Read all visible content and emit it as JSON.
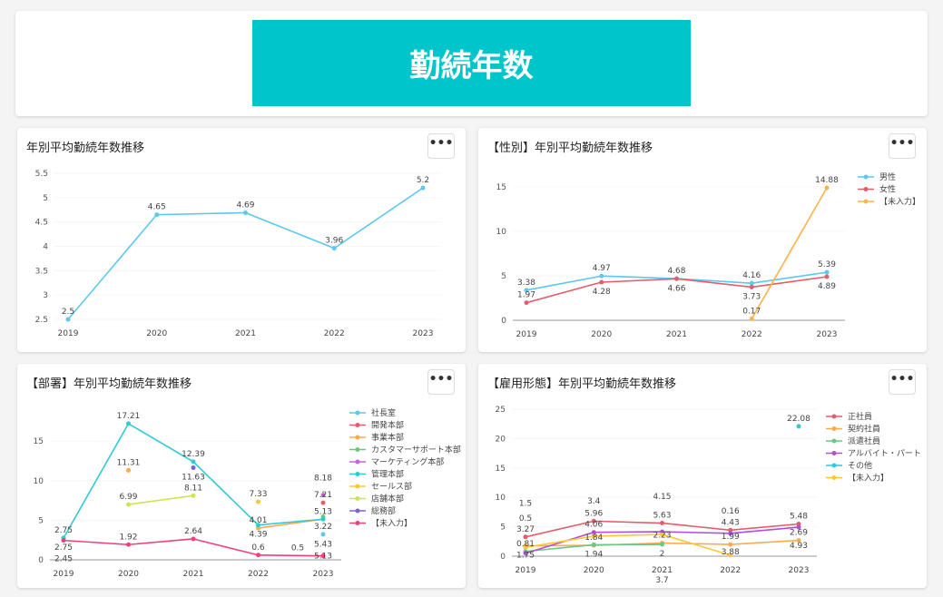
{
  "header": {
    "title": "勤続年数"
  },
  "menu_label": "•••",
  "chart_data": [
    {
      "type": "line",
      "title": "年別平均勤続年数推移",
      "categories": [
        "2019",
        "2020",
        "2021",
        "2022",
        "2023"
      ],
      "ylim": [
        2.5,
        5.5
      ],
      "yticks": [
        2.5,
        3,
        3.5,
        4,
        4.5,
        5,
        5.5
      ],
      "legend": "none",
      "series": [
        {
          "color": "#5ac8f0",
          "values": [
            2.5,
            4.65,
            4.69,
            3.96,
            5.2
          ]
        }
      ]
    },
    {
      "type": "line",
      "title": "【性別】年別平均勤続年数推移",
      "categories": [
        "2019",
        "2020",
        "2021",
        "2022",
        "2023"
      ],
      "ylim": [
        0,
        16
      ],
      "yticks": [
        0,
        5,
        10,
        15
      ],
      "legend": "right",
      "series": [
        {
          "name": "男性",
          "color": "#5ac8f0",
          "values": [
            3.38,
            4.97,
            4.68,
            4.16,
            5.39
          ]
        },
        {
          "name": "女性",
          "color": "#e35d6a",
          "values": [
            1.97,
            4.28,
            4.66,
            3.73,
            4.89
          ]
        },
        {
          "name": "【未入力】",
          "color": "#ffb347",
          "values": [
            null,
            null,
            null,
            0.17,
            14.88
          ]
        }
      ]
    },
    {
      "type": "line",
      "title": "【部署】年別平均勤続年数推移",
      "categories": [
        "2019",
        "2020",
        "2021",
        "2022",
        "2023"
      ],
      "ylim": [
        0,
        18
      ],
      "yticks": [
        0,
        5,
        10,
        15
      ],
      "legend": "right",
      "series": [
        {
          "name": "社長室",
          "color": "#5ac8f0",
          "values": [
            null,
            null,
            null,
            null,
            3.22
          ]
        },
        {
          "name": "開発本部",
          "color": "#e35d6a",
          "values": [
            null,
            null,
            null,
            null,
            7.21
          ]
        },
        {
          "name": "事業本部",
          "color": "#ffa94d",
          "values": [
            null,
            11.31,
            null,
            4.01,
            5.13
          ]
        },
        {
          "name": "カスタマーサポート本部",
          "color": "#6cc785",
          "values": [
            2.75,
            null,
            null,
            null,
            5.43
          ]
        },
        {
          "name": "マーケティング本部",
          "color": "#c266d9",
          "values": [
            null,
            null,
            null,
            null,
            8.18
          ]
        },
        {
          "name": "管理本部",
          "color": "#2ecad6",
          "values": [
            2.75,
            17.21,
            12.39,
            4.39,
            5.13
          ]
        },
        {
          "name": "セールス部",
          "color": "#ffc733",
          "values": [
            null,
            null,
            null,
            7.33,
            null
          ]
        },
        {
          "name": "店舗本部",
          "color": "#cce64d",
          "values": [
            null,
            6.99,
            8.11,
            null,
            null
          ]
        },
        {
          "name": "総務部",
          "color": "#7b61d9",
          "values": [
            null,
            null,
            11.63,
            null,
            null
          ]
        },
        {
          "name": "【未入力】",
          "color": "#f0407a",
          "values": [
            2.45,
            1.92,
            2.64,
            0.6,
            0.5
          ]
        }
      ]
    },
    {
      "type": "line",
      "title": "【雇用形態】年別平均勤続年数推移",
      "categories": [
        "2019",
        "2020",
        "2021",
        "2022",
        "2023"
      ],
      "ylim": [
        0,
        25
      ],
      "yticks": [
        0,
        5,
        10,
        15,
        20,
        25
      ],
      "legend": "right",
      "series": [
        {
          "name": "正社員",
          "color": "#e35d6a",
          "values": [
            3.27,
            5.96,
            5.63,
            4.43,
            5.48
          ]
        },
        {
          "name": "契約社員",
          "color": "#ffa94d",
          "values": [
            1.75,
            1.84,
            2.23,
            1.99,
            2.69
          ]
        },
        {
          "name": "派遣社員",
          "color": "#6cc785",
          "values": [
            0.81,
            1.94,
            2.0,
            null,
            null
          ]
        },
        {
          "name": "アルバイト・パート",
          "color": "#b04fd9",
          "values": [
            0.5,
            4.06,
            4.15,
            3.88,
            4.93
          ]
        },
        {
          "name": "その他",
          "color": "#2ecad6",
          "values": [
            null,
            null,
            null,
            null,
            22.08
          ]
        },
        {
          "name": "【未入力】",
          "color": "#ffc733",
          "values": [
            1.5,
            3.4,
            3.7,
            0.16,
            null
          ]
        }
      ]
    }
  ]
}
